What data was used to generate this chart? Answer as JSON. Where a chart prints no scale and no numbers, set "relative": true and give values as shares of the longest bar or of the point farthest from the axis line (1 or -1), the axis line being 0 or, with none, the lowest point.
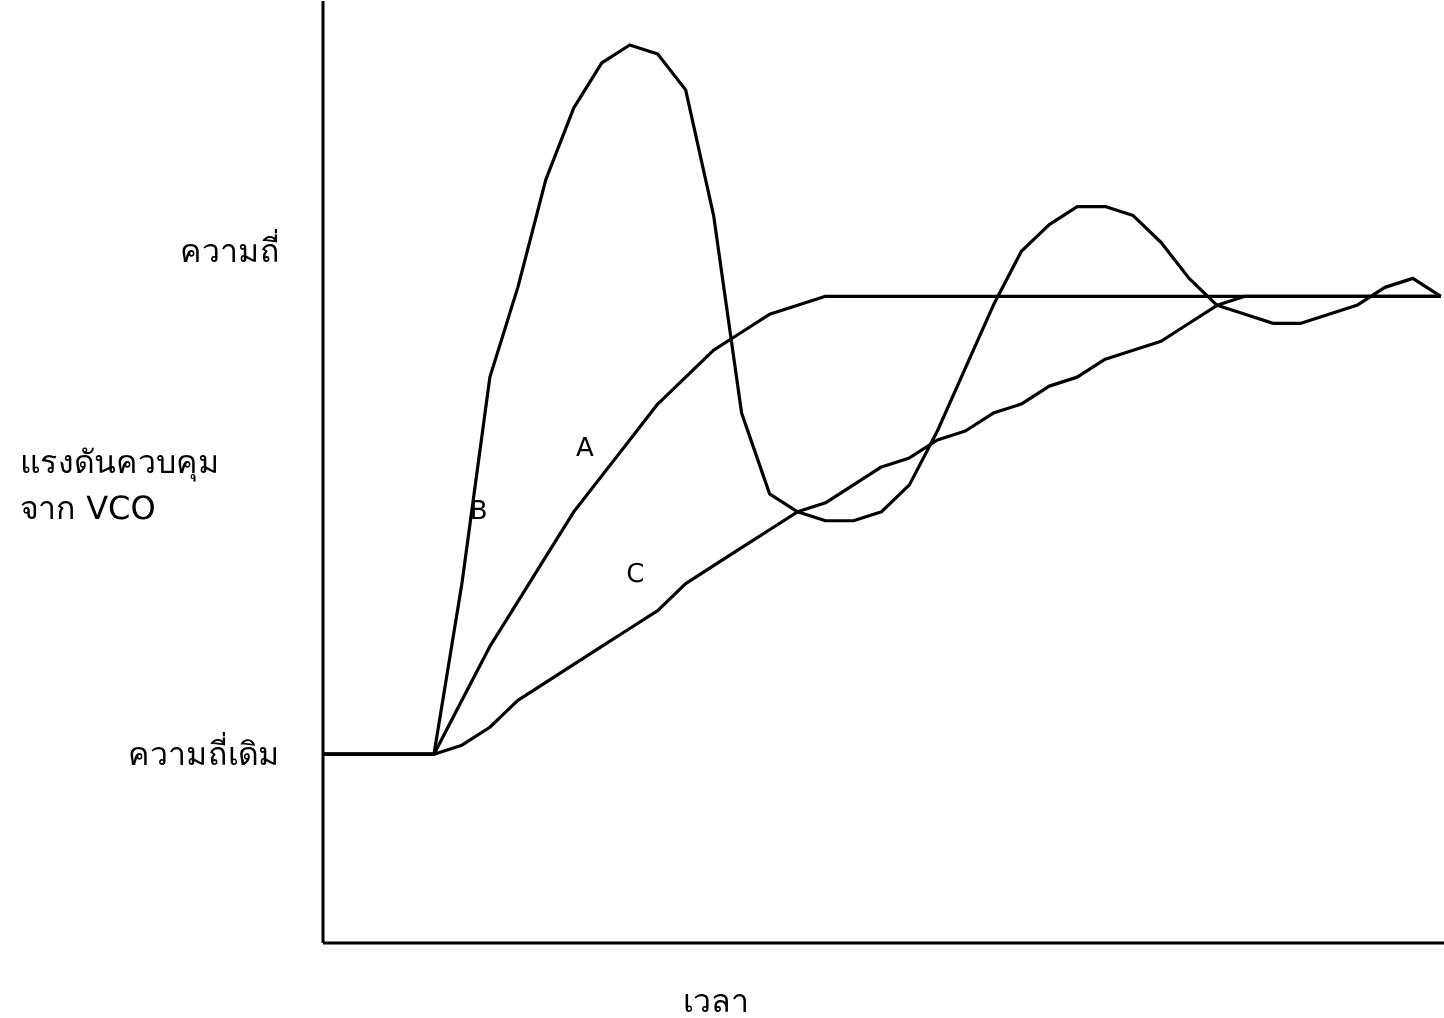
{
  "chart_data": {
    "type": "line",
    "relative": true,
    "xlabel": "เวลา",
    "ylabel": "แรงดันควบคุม\nจาก VCO",
    "categories": [
      null,
      null,
      null,
      null,
      null,
      null,
      null,
      null,
      null,
      null,
      null,
      null,
      null,
      null,
      null,
      null,
      null,
      null,
      null,
      null,
      null,
      null,
      null,
      null,
      null,
      null,
      null,
      null,
      null,
      null,
      null,
      null,
      null,
      null,
      null,
      null,
      null,
      null,
      null,
      null,
      null
    ],
    "series": [
      {
        "name": "A",
        "color": "#000000",
        "values": [
          0.21,
          0.21,
          0.21,
          0.21,
          0.21,
          0.27,
          0.33,
          0.38,
          0.43,
          0.48,
          0.52,
          0.56,
          0.6,
          0.63,
          0.66,
          0.68,
          0.7,
          0.71,
          0.72,
          0.72,
          0.72,
          0.72,
          0.72,
          0.72,
          0.72,
          0.72,
          0.72,
          0.72,
          0.72,
          0.72,
          0.72,
          0.72,
          0.72,
          0.72,
          0.72,
          0.72,
          0.72,
          0.72,
          0.72,
          0.72,
          0.72
        ]
      },
      {
        "name": "B",
        "color": "#000000",
        "values": [
          0.21,
          0.21,
          0.21,
          0.21,
          0.21,
          0.4,
          0.63,
          0.73,
          0.85,
          0.93,
          0.98,
          1.0,
          0.99,
          0.95,
          0.81,
          0.59,
          0.5,
          0.48,
          0.47,
          0.47,
          0.48,
          0.51,
          0.57,
          0.64,
          0.71,
          0.77,
          0.8,
          0.82,
          0.82,
          0.81,
          0.78,
          0.74,
          0.71,
          0.7,
          0.69,
          0.69,
          0.7,
          0.71,
          0.73,
          0.74,
          0.72
        ]
      },
      {
        "name": "C",
        "color": "#000000",
        "values": [
          0.21,
          0.21,
          0.21,
          0.21,
          0.21,
          0.22,
          0.24,
          0.27,
          0.29,
          0.31,
          0.33,
          0.35,
          0.37,
          0.4,
          0.42,
          0.44,
          0.46,
          0.48,
          0.49,
          0.51,
          0.53,
          0.54,
          0.56,
          0.57,
          0.59,
          0.6,
          0.62,
          0.63,
          0.65,
          0.66,
          0.67,
          0.69,
          0.71,
          0.72,
          0.72,
          0.72,
          0.72,
          0.72,
          0.72,
          0.72,
          0.72
        ]
      }
    ],
    "annotations": [
      "ความถี่",
      "ความถี่เดิม"
    ]
  }
}
